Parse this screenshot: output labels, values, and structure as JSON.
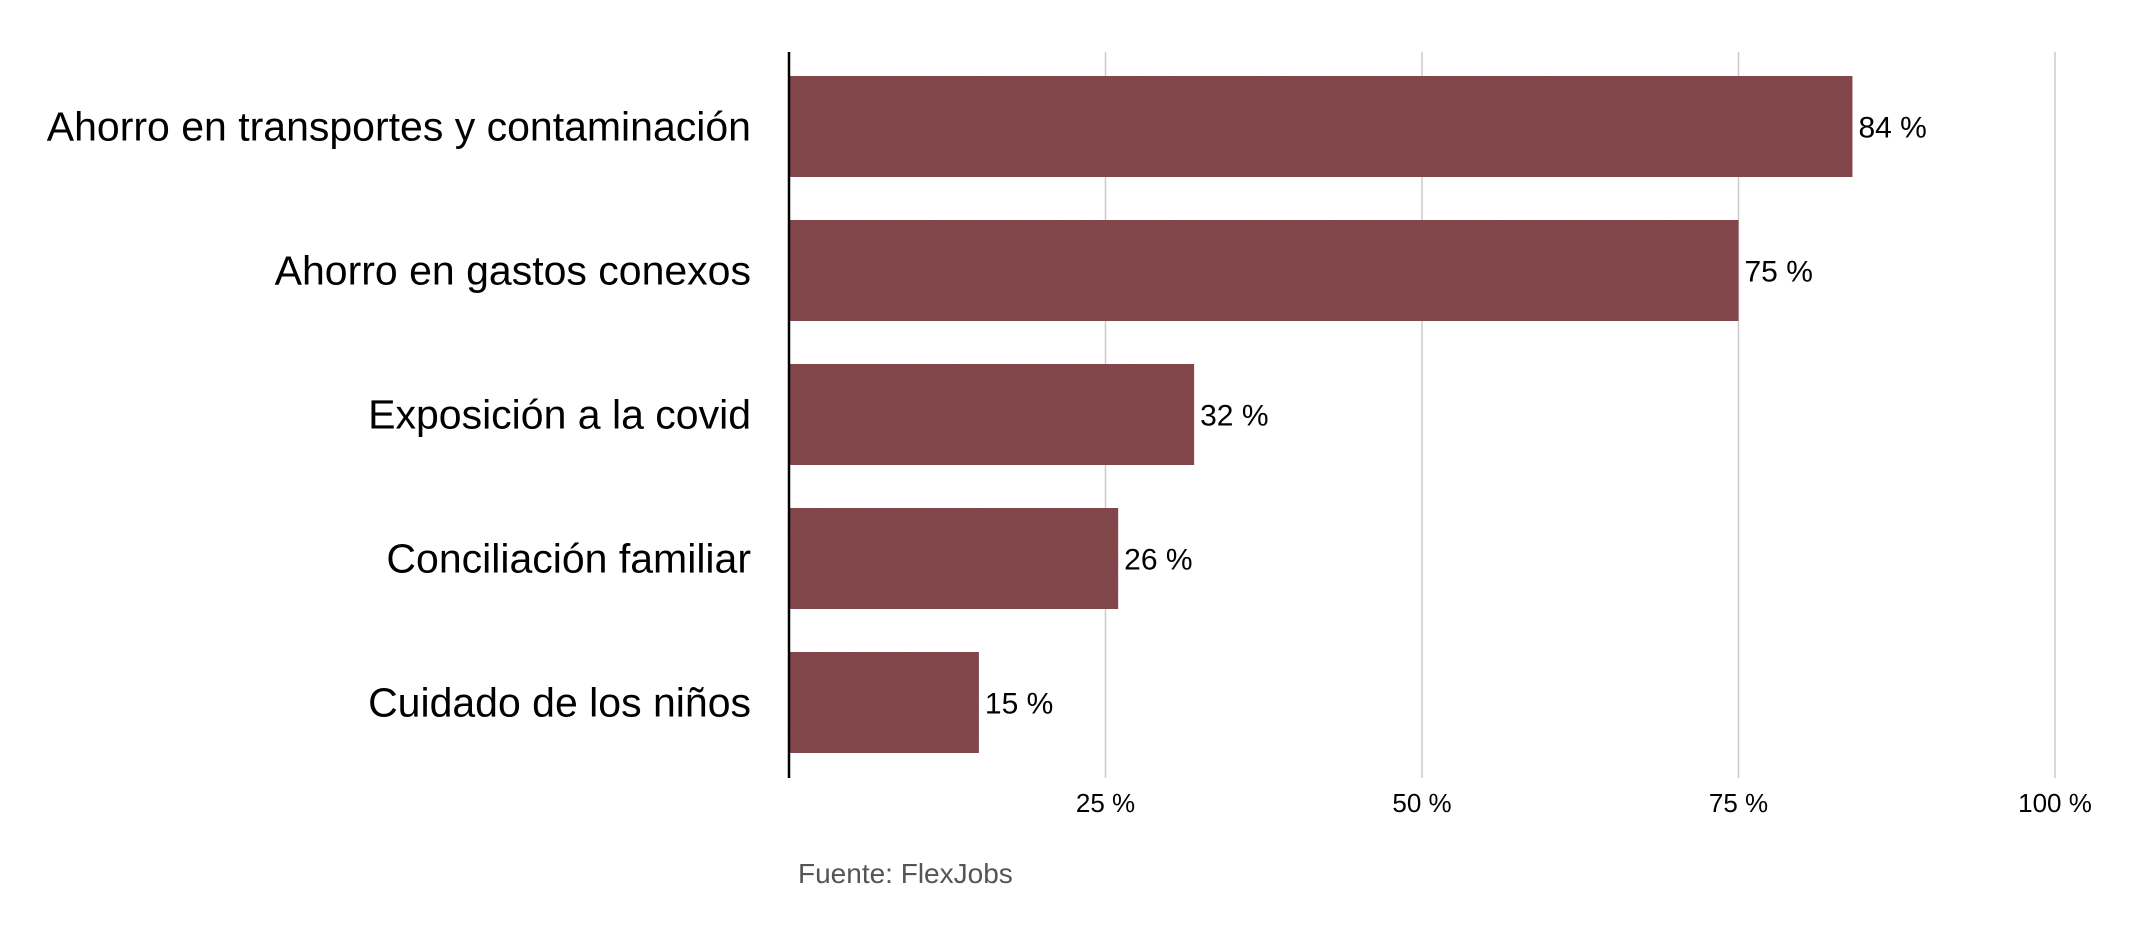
{
  "chart_data": {
    "type": "bar",
    "orientation": "horizontal",
    "categories": [
      "Ahorro en transportes y contaminación",
      "Ahorro en gastos conexos",
      "Exposición a la covid",
      "Conciliación familiar",
      "Cuidado de los niños"
    ],
    "values": [
      84,
      75,
      32,
      26,
      15
    ],
    "value_labels": [
      "84 %",
      "75 %",
      "32 %",
      "26 %",
      "15 %"
    ],
    "xlim": [
      0,
      100
    ],
    "ticks": [
      25,
      50,
      75,
      100
    ],
    "tick_labels": [
      "25 %",
      "50 %",
      "75 %",
      "100 %"
    ],
    "grid": true,
    "legend": "none",
    "source": "Fuente: FlexJobs",
    "colors": {
      "bar": "#864a4e",
      "grid": "#cccccc",
      "axis": "#000000"
    }
  }
}
